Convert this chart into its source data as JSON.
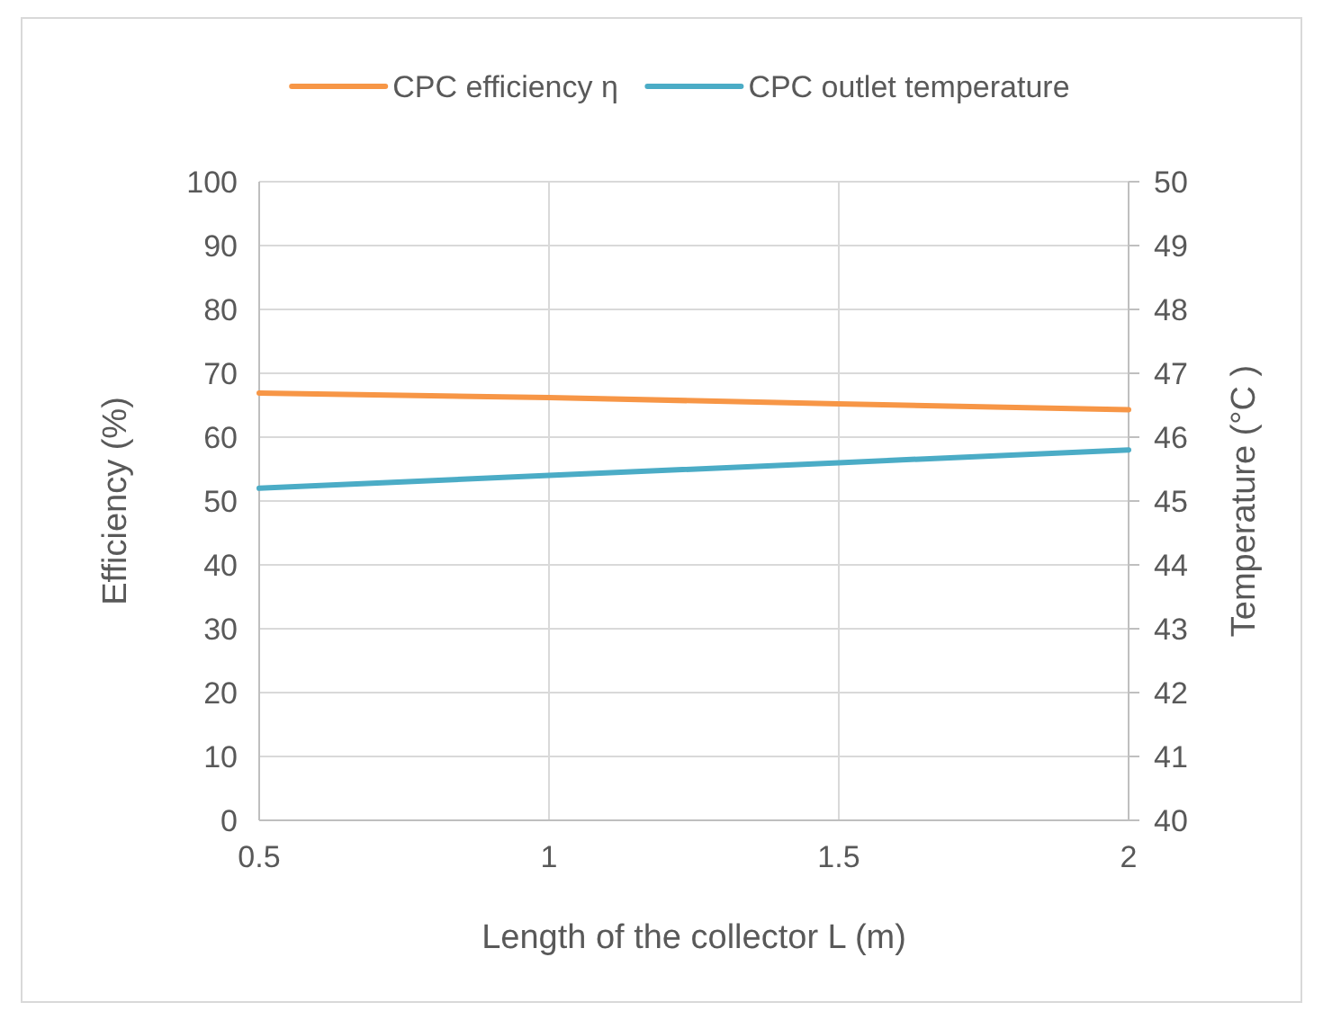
{
  "chart_data": {
    "type": "line",
    "xlabel": "Length of the collector L (m)",
    "ylabel": "Efficiency (%)",
    "y2label": "Temperature (°C )",
    "x": [
      0.5,
      1,
      1.5,
      2
    ],
    "series": [
      {
        "name": "CPC efficiency η",
        "color": "#f79646",
        "values": [
          66.9,
          66.2,
          65.2,
          64.3
        ]
      },
      {
        "name": "CPC outlet temperature",
        "color": "#4bacc6",
        "values": [
          45.2,
          45.4,
          45.6,
          45.8
        ],
        "axis": "y2"
      }
    ],
    "xlim": [
      0.5,
      2
    ],
    "xticks": [
      0.5,
      1,
      1.5,
      2
    ],
    "ylim": [
      0,
      100
    ],
    "yticks": [
      0,
      10,
      20,
      30,
      40,
      50,
      60,
      70,
      80,
      90,
      100
    ],
    "y2lim": [
      40,
      50
    ],
    "y2ticks": [
      40,
      41,
      42,
      43,
      44,
      45,
      46,
      47,
      48,
      49,
      50
    ],
    "grid": true,
    "legend": "top",
    "marker": "none",
    "line_style": "solid"
  }
}
